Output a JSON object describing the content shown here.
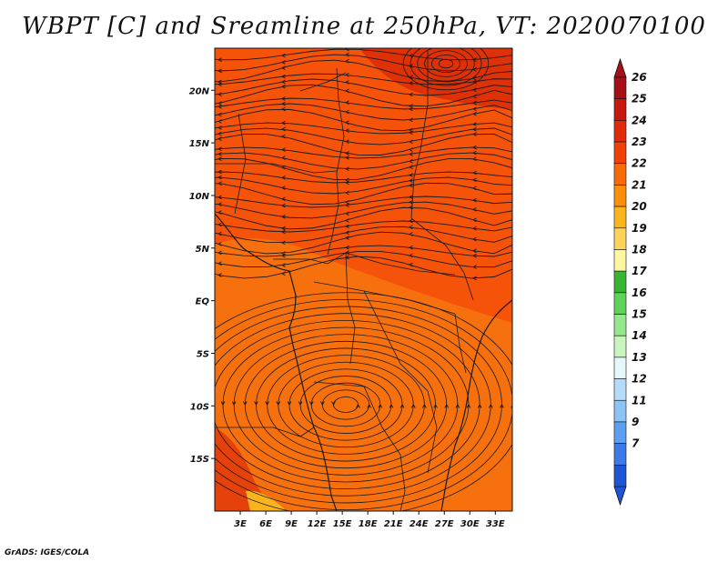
{
  "title": "WBPT [C] and Sreamline at 250hPa, VT: 2020070100",
  "credit": "GrADS: IGES/COLA",
  "map": {
    "lon_labels": [
      "3E",
      "6E",
      "9E",
      "12E",
      "15E",
      "18E",
      "21E",
      "24E",
      "27E",
      "30E",
      "33E"
    ],
    "lat_labels": [
      "20N",
      "15N",
      "10N",
      "5N",
      "EQ",
      "5S",
      "10S",
      "15S"
    ],
    "lon_range": [
      0,
      35
    ],
    "lat_range": [
      -20,
      24
    ]
  },
  "colorbar": {
    "labels": [
      "26",
      "25",
      "24",
      "23",
      "22",
      "21",
      "20",
      "19",
      "18",
      "17",
      "16",
      "15",
      "14",
      "13",
      "12",
      "11",
      "9",
      "7"
    ],
    "colors": [
      "#a50f15",
      "#c8170d",
      "#e02a0a",
      "#f0410a",
      "#f66a0a",
      "#f98f0a",
      "#fbb41e",
      "#fdd35a",
      "#fdf5a0",
      "#37b432",
      "#5fd25a",
      "#96e68c",
      "#c8f5be",
      "#e6f7fa",
      "#b4dcfa",
      "#8cc3f5",
      "#5a9ff0",
      "#3c7ae6",
      "#1e55d2"
    ],
    "min_color": "#1e55d2",
    "max_color": "#a50f15"
  },
  "field": {
    "background": "#f5520a",
    "southern_region": "#f7700e",
    "warm_patch_color": "#dd2e08",
    "cool_patch_color": "#fbb41e"
  }
}
